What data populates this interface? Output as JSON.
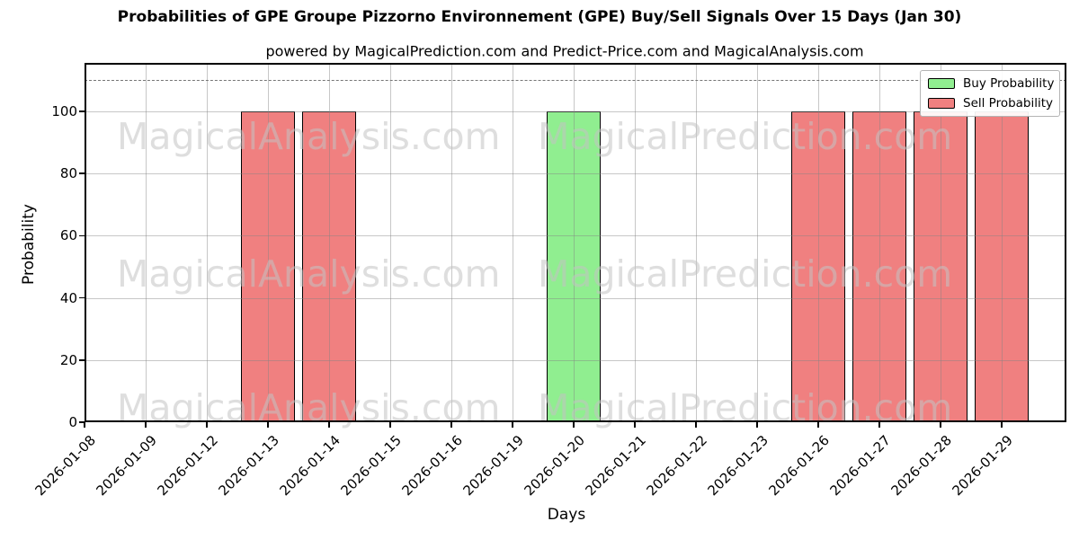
{
  "title": "Probabilities of GPE Groupe Pizzorno Environnement (GPE) Buy/Sell Signals Over 15 Days (Jan 30)",
  "subtitle": "powered by MagicalPrediction.com and Predict-Price.com and MagicalAnalysis.com",
  "watermark": {
    "left_text": "MagicalAnalysis.com",
    "right_text": "MagicalPrediction.com"
  },
  "legend": {
    "position": "upper right",
    "items": [
      {
        "label": "Buy Probability",
        "color": "#90EE90"
      },
      {
        "label": "Sell Probability",
        "color": "#F08080"
      }
    ]
  },
  "chart_data": {
    "type": "bar",
    "title": "Probabilities of GPE Groupe Pizzorno Environnement (GPE) Buy/Sell Signals Over 15 Days (Jan 30)",
    "subtitle": "powered by MagicalPrediction.com and Predict-Price.com and MagicalAnalysis.com",
    "xlabel": "Days",
    "ylabel": "Probability",
    "categories": [
      "2026-01-08",
      "2026-01-09",
      "2026-01-12",
      "2026-01-13",
      "2026-01-14",
      "2026-01-15",
      "2026-01-16",
      "2026-01-19",
      "2026-01-20",
      "2026-01-21",
      "2026-01-22",
      "2026-01-23",
      "2026-01-26",
      "2026-01-27",
      "2026-01-28",
      "2026-01-29"
    ],
    "series": [
      {
        "name": "Buy Probability",
        "color": "#90EE90",
        "values": [
          0,
          0,
          0,
          0,
          0,
          0,
          0,
          0,
          100,
          0,
          0,
          0,
          0,
          0,
          0,
          0
        ]
      },
      {
        "name": "Sell Probability",
        "color": "#F08080",
        "values": [
          0,
          0,
          0,
          100,
          100,
          0,
          0,
          0,
          0,
          0,
          0,
          0,
          100,
          100,
          100,
          100
        ]
      }
    ],
    "yticks": [
      0,
      20,
      40,
      60,
      80,
      100
    ],
    "ylim": [
      0,
      115.6
    ],
    "grid": true,
    "threshold_line": {
      "value": 110,
      "style": "dashed",
      "color": "#757575"
    }
  }
}
